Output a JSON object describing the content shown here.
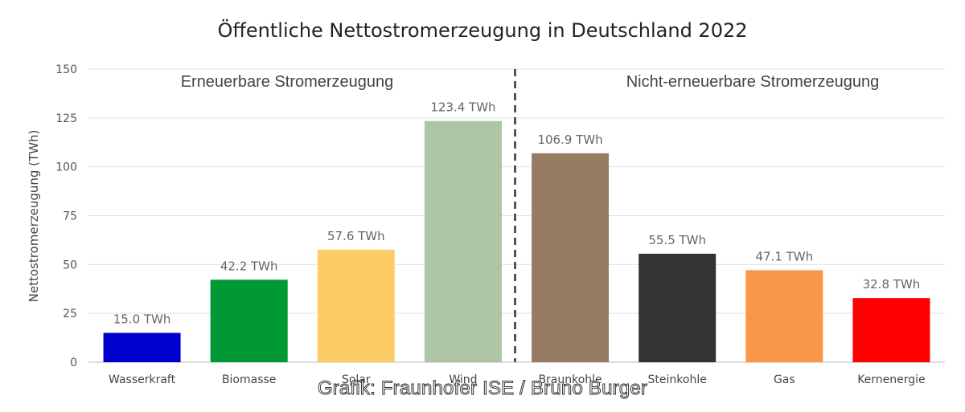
{
  "chart_data": {
    "type": "bar",
    "title": "Öffentliche Nettostromerzeugung in Deutschland 2022",
    "ylabel": "Nettostromerzeugung (TWh)",
    "xlabel": "",
    "ylim": [
      0,
      150
    ],
    "yticks": [
      0,
      25,
      50,
      75,
      100,
      125,
      150
    ],
    "grid": true,
    "categories": [
      "Wasserkraft",
      "Biomasse",
      "Solar",
      "Wind",
      "Braunkohle",
      "Steinkohle",
      "Gas",
      "Kernenergie"
    ],
    "values": [
      15.0,
      42.2,
      57.6,
      123.4,
      106.9,
      55.5,
      47.1,
      32.8
    ],
    "data_labels": [
      "15.0 TWh",
      "42.2 TWh",
      "57.6 TWh",
      "123.4 TWh",
      "106.9 TWh",
      "55.5 TWh",
      "47.1 TWh",
      "32.8 TWh"
    ],
    "colors": [
      "#0000cc",
      "#009933",
      "#fccc66",
      "#aec5a6",
      "#957b61",
      "#333333",
      "#f99748",
      "#ff0000"
    ],
    "groups": [
      {
        "label": "Erneuerbare Stromerzeugung",
        "categories": [
          "Wasserkraft",
          "Biomasse",
          "Solar",
          "Wind"
        ]
      },
      {
        "label": "Nicht-erneuerbare Stromerzeugung",
        "categories": [
          "Braunkohle",
          "Steinkohle",
          "Gas",
          "Kernenergie"
        ]
      }
    ],
    "divider_between": [
      "Wind",
      "Braunkohle"
    ]
  },
  "watermark": "Grafik: Fraunhofer ISE / Bruno Burger"
}
